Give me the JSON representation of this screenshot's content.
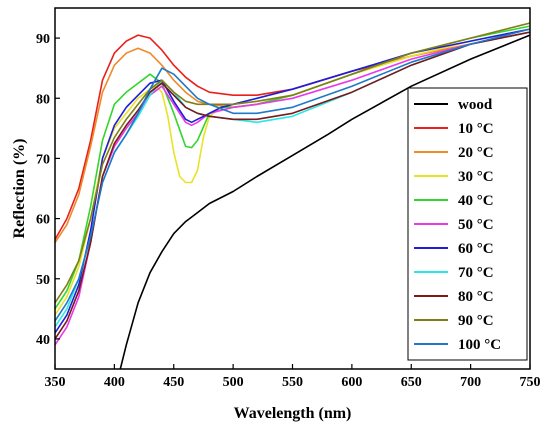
{
  "chart_data": {
    "type": "line",
    "title": "",
    "xlabel": "Wavelength (nm)",
    "ylabel": "Reflection (%)",
    "xlim": [
      350,
      750
    ],
    "ylim": [
      35,
      95
    ],
    "xticks": [
      350,
      400,
      450,
      500,
      550,
      600,
      650,
      700,
      750
    ],
    "yticks": [
      40,
      50,
      60,
      70,
      80,
      90
    ],
    "grid": false,
    "legend_position": "right",
    "series": [
      {
        "name": "wood",
        "color": "#000000",
        "x": [
          405,
          410,
          420,
          430,
          440,
          450,
          460,
          470,
          480,
          500,
          520,
          550,
          580,
          600,
          650,
          700,
          750
        ],
        "y": [
          35,
          39,
          46,
          51,
          54.5,
          57.5,
          59.5,
          61,
          62.5,
          64.5,
          67,
          70.5,
          74,
          76.5,
          82,
          86.5,
          90.5
        ]
      },
      {
        "name": "10 °C",
        "color": "#e8211b",
        "x": [
          350,
          360,
          370,
          380,
          390,
          400,
          410,
          420,
          430,
          440,
          450,
          460,
          470,
          480,
          500,
          520,
          550,
          600,
          650,
          700,
          750
        ],
        "y": [
          56.5,
          60,
          65,
          73,
          83,
          87.5,
          89.5,
          90.5,
          90,
          88,
          85.5,
          83.5,
          82,
          81,
          80.5,
          80.5,
          81.5,
          84.5,
          87,
          89,
          91
        ]
      },
      {
        "name": "20 °C",
        "color": "#ef8a2a",
        "x": [
          350,
          360,
          370,
          380,
          390,
          400,
          410,
          420,
          430,
          440,
          450,
          460,
          470,
          480,
          500,
          520,
          550,
          600,
          650,
          700,
          750
        ],
        "y": [
          56,
          59,
          64,
          72,
          81,
          85.5,
          87.5,
          88.3,
          87.5,
          85.5,
          83,
          81,
          79.5,
          79,
          78.5,
          79,
          80.5,
          84,
          87,
          89,
          91
        ]
      },
      {
        "name": "30 °C",
        "color": "#e8e22a",
        "x": [
          350,
          360,
          370,
          380,
          390,
          400,
          410,
          420,
          430,
          435,
          440,
          445,
          450,
          455,
          460,
          465,
          470,
          475,
          480,
          490,
          500,
          520,
          550,
          600,
          650,
          700,
          750
        ],
        "y": [
          44,
          47,
          52,
          60,
          70,
          75,
          77.5,
          80,
          81.5,
          82,
          81,
          77,
          71,
          67,
          66,
          66,
          68,
          73.5,
          77,
          78.5,
          78.5,
          79,
          80.5,
          84,
          87,
          89.5,
          91.5
        ]
      },
      {
        "name": "40 °C",
        "color": "#35d52c",
        "x": [
          350,
          360,
          370,
          380,
          390,
          400,
          410,
          420,
          430,
          440,
          450,
          460,
          465,
          470,
          480,
          490,
          500,
          520,
          550,
          600,
          650,
          700,
          750
        ],
        "y": [
          45,
          48,
          53,
          62,
          73,
          79,
          81,
          82.5,
          84,
          82.5,
          77.5,
          72,
          71.8,
          73,
          77.5,
          78.5,
          78.5,
          79,
          80.5,
          84,
          87.5,
          90,
          92
        ]
      },
      {
        "name": "50 °C",
        "color": "#e83ae8",
        "x": [
          350,
          360,
          370,
          380,
          390,
          400,
          410,
          420,
          430,
          440,
          450,
          460,
          465,
          470,
          480,
          490,
          500,
          520,
          550,
          600,
          650,
          700,
          750
        ],
        "y": [
          39,
          42,
          47,
          56,
          67,
          72,
          75,
          77.5,
          80.5,
          82,
          79,
          76,
          75.5,
          76,
          77.5,
          78,
          78.5,
          79,
          80,
          83,
          86.5,
          89,
          91
        ]
      },
      {
        "name": "60 °C",
        "color": "#1e1ed8",
        "x": [
          350,
          360,
          370,
          380,
          390,
          400,
          410,
          420,
          430,
          440,
          450,
          460,
          465,
          470,
          480,
          490,
          500,
          520,
          550,
          600,
          650,
          700,
          750
        ],
        "y": [
          41,
          44,
          49,
          58,
          70,
          75.5,
          78.5,
          80.5,
          82.5,
          83,
          79.5,
          76.5,
          76,
          76.5,
          77.5,
          78.5,
          79,
          80,
          81.5,
          84.5,
          87.5,
          89.5,
          91.5
        ]
      },
      {
        "name": "70 °C",
        "color": "#2ae8e8",
        "x": [
          350,
          360,
          370,
          380,
          390,
          400,
          410,
          420,
          430,
          440,
          450,
          460,
          470,
          480,
          500,
          520,
          550,
          600,
          650,
          700,
          750
        ],
        "y": [
          42,
          45,
          50,
          57,
          66,
          71,
          74,
          77,
          80.5,
          83,
          81,
          78.5,
          77.5,
          77,
          76.5,
          76,
          77,
          81,
          85.5,
          89,
          91
        ]
      },
      {
        "name": "80 °C",
        "color": "#7a1a1a",
        "x": [
          350,
          360,
          370,
          380,
          390,
          400,
          410,
          420,
          430,
          440,
          450,
          460,
          470,
          480,
          500,
          520,
          550,
          600,
          650,
          700,
          750
        ],
        "y": [
          40,
          43,
          48,
          56,
          67,
          72.5,
          75.5,
          78,
          81,
          82.5,
          80.5,
          78.5,
          77.5,
          77,
          76.5,
          76.5,
          77.5,
          81,
          85.5,
          89,
          91
        ]
      },
      {
        "name": "90 °C",
        "color": "#7f7f18",
        "x": [
          350,
          360,
          370,
          380,
          390,
          400,
          410,
          420,
          430,
          440,
          450,
          460,
          470,
          480,
          500,
          520,
          550,
          600,
          650,
          700,
          750
        ],
        "y": [
          46,
          49,
          53,
          60,
          69,
          73.5,
          76.5,
          79,
          81.5,
          83,
          81,
          79.5,
          79,
          79,
          79,
          79.5,
          80.5,
          84,
          87.5,
          90,
          92.5
        ]
      },
      {
        "name": "100 °C",
        "color": "#1f78c8",
        "x": [
          350,
          360,
          370,
          380,
          390,
          400,
          410,
          420,
          430,
          440,
          450,
          460,
          470,
          480,
          500,
          520,
          550,
          600,
          650,
          700,
          750
        ],
        "y": [
          43,
          46,
          50,
          57,
          66,
          71,
          74,
          77.5,
          81.5,
          85,
          84,
          82,
          80,
          79,
          77.5,
          77.5,
          78.5,
          82,
          86,
          89,
          91.5
        ]
      }
    ]
  }
}
